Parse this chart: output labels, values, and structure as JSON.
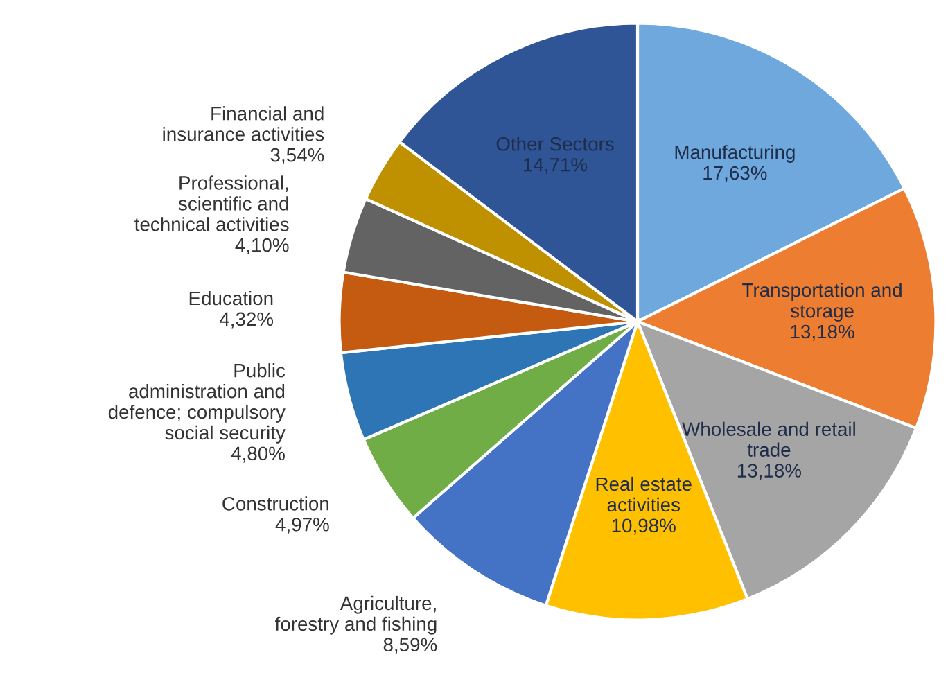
{
  "chart_data": {
    "type": "pie",
    "categories": [
      "Manufacturing",
      "Transportation and storage",
      "Wholesale and retail trade",
      "Real estate activities",
      "Agriculture, forestry and fishing",
      "Construction",
      "Public administration and defence; compulsory social security",
      "Education",
      "Professional, scientific and technical activities",
      "Financial and insurance activities",
      "Other Sectors"
    ],
    "values": [
      17.63,
      13.18,
      13.18,
      10.98,
      8.59,
      4.97,
      4.8,
      4.32,
      4.1,
      3.54,
      14.71
    ],
    "value_labels": [
      "17,63%",
      "13,18%",
      "13,18%",
      "10,98%",
      "8,59%",
      "4,97%",
      "4,80%",
      "4,32%",
      "4,10%",
      "3,54%",
      "14,71%"
    ],
    "colors": [
      "#6fa8dc",
      "#ed7d31",
      "#a5a5a5",
      "#ffc000",
      "#4472c4",
      "#70ad47",
      "#2e75b6",
      "#c55a11",
      "#636363",
      "#bf9000",
      "#2f5597"
    ],
    "legend": false
  }
}
